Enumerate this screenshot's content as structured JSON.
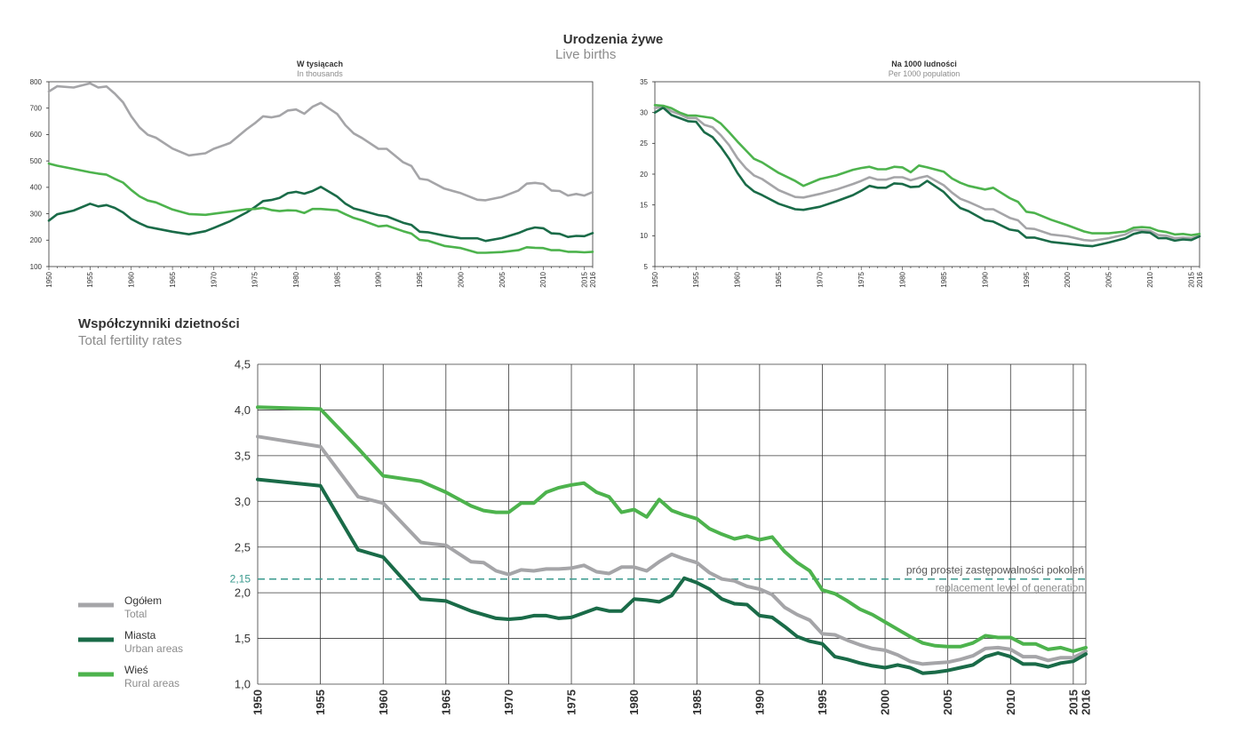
{
  "main_title": "Urodzenia żywe",
  "main_subtitle": "Live births",
  "colors": {
    "total": "#a5a5a8",
    "urban": "#1a6b48",
    "rural": "#4db34d",
    "replacement": "#3a9a8e",
    "grid": "#3a3a3a"
  },
  "legend": [
    {
      "key": "total",
      "label": "Ogółem",
      "sublabel": "Total"
    },
    {
      "key": "urban",
      "label": "Miasta",
      "sublabel": "Urban areas"
    },
    {
      "key": "rural",
      "label": "Wieś",
      "sublabel": "Rural areas"
    }
  ],
  "chart_data": [
    {
      "type": "line",
      "title": "W tysiącach",
      "subtitle": "In thousands",
      "ylim": [
        100,
        800
      ],
      "yticks": [
        100,
        200,
        300,
        400,
        500,
        600,
        700,
        800
      ],
      "xticks": [
        1950,
        1955,
        1960,
        1965,
        1970,
        1975,
        1980,
        1985,
        1990,
        1995,
        2000,
        2005,
        2010,
        2015,
        2016
      ],
      "grid": false,
      "x": [
        1950,
        1951,
        1953,
        1955,
        1956,
        1957,
        1958,
        1959,
        1960,
        1961,
        1962,
        1963,
        1965,
        1967,
        1969,
        1970,
        1972,
        1974,
        1975,
        1976,
        1977,
        1978,
        1979,
        1980,
        1981,
        1982,
        1983,
        1985,
        1986,
        1987,
        1988,
        1990,
        1991,
        1993,
        1994,
        1995,
        1996,
        1998,
        2000,
        2002,
        2003,
        2005,
        2007,
        2008,
        2009,
        2010,
        2011,
        2012,
        2013,
        2014,
        2015,
        2016
      ],
      "series": [
        {
          "key": "total",
          "values": [
            763,
            783,
            778,
            794,
            778,
            782,
            755,
            722,
            669,
            627,
            599,
            588,
            547,
            521,
            529,
            546,
            568,
            620,
            643,
            669,
            665,
            671,
            691,
            695,
            679,
            705,
            720,
            678,
            635,
            604,
            587,
            546,
            546,
            495,
            481,
            433,
            428,
            395,
            378,
            353,
            351,
            364,
            388,
            414,
            417,
            413,
            388,
            386,
            369,
            375,
            369,
            382
          ]
        },
        {
          "key": "urban",
          "values": [
            274,
            298,
            312,
            338,
            328,
            333,
            322,
            305,
            280,
            264,
            250,
            244,
            232,
            222,
            234,
            246,
            272,
            305,
            325,
            348,
            352,
            360,
            378,
            383,
            376,
            386,
            402,
            365,
            338,
            320,
            312,
            295,
            290,
            266,
            258,
            232,
            230,
            217,
            207,
            207,
            197,
            208,
            227,
            240,
            248,
            245,
            226,
            224,
            212,
            216,
            215,
            227
          ]
        },
        {
          "key": "rural",
          "values": [
            490,
            482,
            470,
            457,
            452,
            448,
            432,
            418,
            390,
            366,
            350,
            343,
            316,
            299,
            296,
            300,
            308,
            317,
            318,
            322,
            314,
            310,
            313,
            312,
            303,
            318,
            318,
            313,
            298,
            284,
            275,
            252,
            255,
            234,
            225,
            201,
            198,
            178,
            170,
            152,
            152,
            155,
            162,
            173,
            171,
            170,
            162,
            162,
            156,
            156,
            154,
            156
          ]
        }
      ]
    },
    {
      "type": "line",
      "title": "Na 1000 ludności",
      "subtitle": "Per 1000 population",
      "ylim": [
        5,
        35
      ],
      "yticks": [
        5,
        10,
        15,
        20,
        25,
        30,
        35
      ],
      "xticks": [
        1950,
        1955,
        1960,
        1965,
        1970,
        1975,
        1980,
        1985,
        1990,
        1995,
        2000,
        2005,
        2010,
        2015,
        2016
      ],
      "grid": false,
      "x": [
        1950,
        1951,
        1952,
        1953,
        1954,
        1955,
        1956,
        1957,
        1958,
        1959,
        1960,
        1961,
        1962,
        1963,
        1965,
        1967,
        1968,
        1970,
        1972,
        1974,
        1975,
        1976,
        1977,
        1978,
        1979,
        1980,
        1981,
        1982,
        1983,
        1985,
        1986,
        1987,
        1988,
        1990,
        1991,
        1993,
        1994,
        1995,
        1996,
        1998,
        2000,
        2002,
        2003,
        2005,
        2007,
        2008,
        2009,
        2010,
        2011,
        2012,
        2013,
        2014,
        2015,
        2016
      ],
      "series": [
        {
          "key": "total",
          "values": [
            30.7,
            31.0,
            30.2,
            29.7,
            29.1,
            29.1,
            28.0,
            27.6,
            26.3,
            24.7,
            22.6,
            21.0,
            19.8,
            19.2,
            17.4,
            16.3,
            16.2,
            16.8,
            17.5,
            18.4,
            18.9,
            19.5,
            19.1,
            19.1,
            19.5,
            19.5,
            19.0,
            19.4,
            19.7,
            18.2,
            17.0,
            16.0,
            15.5,
            14.3,
            14.3,
            12.9,
            12.5,
            11.2,
            11.1,
            10.2,
            9.9,
            9.3,
            9.2,
            9.6,
            10.2,
            10.9,
            10.9,
            10.8,
            10.1,
            10.0,
            9.6,
            9.7,
            9.6,
            10.0
          ]
        },
        {
          "key": "urban",
          "values": [
            30.0,
            30.8,
            29.6,
            29.1,
            28.6,
            28.5,
            26.8,
            26.0,
            24.4,
            22.5,
            20.2,
            18.3,
            17.2,
            16.6,
            15.2,
            14.3,
            14.2,
            14.7,
            15.6,
            16.6,
            17.3,
            18.1,
            17.8,
            17.8,
            18.5,
            18.4,
            17.9,
            18.0,
            18.9,
            17.1,
            15.7,
            14.5,
            14.0,
            12.5,
            12.3,
            11.0,
            10.8,
            9.7,
            9.7,
            9.0,
            8.7,
            8.4,
            8.3,
            8.9,
            9.6,
            10.3,
            10.6,
            10.5,
            9.6,
            9.6,
            9.2,
            9.4,
            9.3,
            9.9
          ]
        },
        {
          "key": "rural",
          "values": [
            31.2,
            31.1,
            30.7,
            30.0,
            29.5,
            29.5,
            29.3,
            29.1,
            28.2,
            26.8,
            25.3,
            23.9,
            22.5,
            21.9,
            20.2,
            18.9,
            18.1,
            19.2,
            19.8,
            20.7,
            21.0,
            21.2,
            20.8,
            20.8,
            21.2,
            21.1,
            20.3,
            21.4,
            21.1,
            20.4,
            19.3,
            18.6,
            18.1,
            17.5,
            17.8,
            16.1,
            15.5,
            13.9,
            13.7,
            12.6,
            11.7,
            10.7,
            10.4,
            10.4,
            10.7,
            11.3,
            11.4,
            11.3,
            10.8,
            10.6,
            10.2,
            10.3,
            10.1,
            10.3
          ]
        }
      ]
    },
    {
      "type": "line",
      "title": "Współczynniki dzietności",
      "subtitle": "Total fertility rates",
      "ylim": [
        1.0,
        4.5
      ],
      "yticks": [
        1.0,
        1.5,
        2.0,
        2.5,
        3.0,
        3.5,
        4.0,
        4.5
      ],
      "ytick_labels": [
        "1,0",
        "1,5",
        "2,0",
        "2,5",
        "3,0",
        "3,5",
        "4,0",
        "4,5"
      ],
      "xticks": [
        1950,
        1955,
        1960,
        1965,
        1970,
        1975,
        1980,
        1985,
        1990,
        1995,
        2000,
        2005,
        2010,
        2015,
        2016
      ],
      "vgrid_years": [
        1950,
        1955,
        1960,
        1965,
        1970,
        1975,
        1980,
        1985,
        1990,
        1995,
        2000,
        2005,
        2010,
        2015,
        2016
      ],
      "grid": true,
      "x": [
        1950,
        1955,
        1958,
        1960,
        1963,
        1965,
        1967,
        1968,
        1969,
        1970,
        1971,
        1972,
        1973,
        1974,
        1975,
        1976,
        1977,
        1978,
        1979,
        1980,
        1981,
        1982,
        1983,
        1984,
        1985,
        1986,
        1987,
        1988,
        1989,
        1990,
        1991,
        1992,
        1993,
        1994,
        1995,
        1996,
        1997,
        1998,
        1999,
        2000,
        2001,
        2002,
        2003,
        2004,
        2005,
        2006,
        2007,
        2008,
        2009,
        2010,
        2011,
        2012,
        2013,
        2014,
        2015,
        2016
      ],
      "series": [
        {
          "key": "total",
          "values": [
            3.71,
            3.6,
            3.05,
            2.98,
            2.55,
            2.52,
            2.34,
            2.33,
            2.24,
            2.2,
            2.25,
            2.24,
            2.26,
            2.26,
            2.27,
            2.3,
            2.23,
            2.21,
            2.28,
            2.28,
            2.24,
            2.34,
            2.42,
            2.37,
            2.33,
            2.22,
            2.15,
            2.13,
            2.07,
            2.04,
            1.98,
            1.84,
            1.76,
            1.7,
            1.55,
            1.54,
            1.48,
            1.43,
            1.39,
            1.37,
            1.32,
            1.25,
            1.22,
            1.23,
            1.24,
            1.27,
            1.31,
            1.39,
            1.4,
            1.38,
            1.3,
            1.3,
            1.26,
            1.29,
            1.29,
            1.36
          ]
        },
        {
          "key": "urban",
          "values": [
            3.24,
            3.17,
            2.47,
            2.39,
            1.93,
            1.91,
            1.8,
            1.76,
            1.72,
            1.71,
            1.72,
            1.75,
            1.75,
            1.72,
            1.73,
            1.78,
            1.83,
            1.8,
            1.8,
            1.93,
            1.92,
            1.9,
            1.97,
            2.16,
            2.11,
            2.04,
            1.93,
            1.88,
            1.87,
            1.75,
            1.73,
            1.63,
            1.52,
            1.47,
            1.44,
            1.3,
            1.27,
            1.23,
            1.2,
            1.18,
            1.21,
            1.18,
            1.12,
            1.13,
            1.15,
            1.18,
            1.21,
            1.3,
            1.34,
            1.3,
            1.22,
            1.22,
            1.19,
            1.23,
            1.25,
            1.33
          ]
        },
        {
          "key": "rural",
          "values": [
            4.03,
            4.01,
            3.58,
            3.28,
            3.22,
            3.1,
            2.95,
            2.9,
            2.88,
            2.88,
            2.98,
            2.98,
            3.1,
            3.15,
            3.18,
            3.2,
            3.1,
            3.05,
            2.88,
            2.91,
            2.83,
            3.02,
            2.9,
            2.85,
            2.81,
            2.7,
            2.64,
            2.59,
            2.62,
            2.58,
            2.61,
            2.45,
            2.33,
            2.24,
            2.03,
            1.99,
            1.91,
            1.82,
            1.76,
            1.68,
            1.6,
            1.52,
            1.45,
            1.42,
            1.41,
            1.41,
            1.45,
            1.53,
            1.51,
            1.51,
            1.44,
            1.44,
            1.38,
            1.4,
            1.36,
            1.4
          ]
        }
      ],
      "reference_line": {
        "value": 2.15,
        "label": "2,15",
        "text_pl": "próg prostej zastępowalności pokoleń",
        "text_en": "replacement level of generation"
      }
    }
  ]
}
